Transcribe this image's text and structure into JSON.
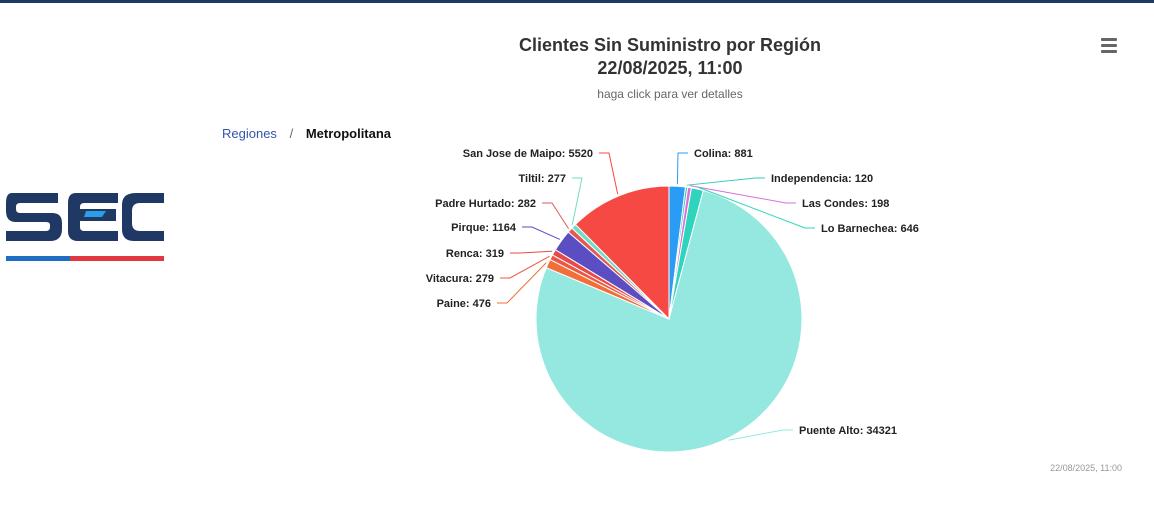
{
  "chart_data": {
    "type": "pie",
    "title_lines": [
      "Clientes Sin Suministro por Región",
      "22/08/2025, 11:00"
    ],
    "subtitle": "haga click para ver detalles",
    "slices": [
      {
        "label": "Colina: 881",
        "value": 881,
        "color": "#2b9cf5"
      },
      {
        "label": "Independencia: 120",
        "value": 120,
        "color": "#36c9b6"
      },
      {
        "label": "Las Condes: 198",
        "value": 198,
        "color": "#d86fd8"
      },
      {
        "label": "Lo Barnechea: 646",
        "value": 646,
        "color": "#2ed4bc"
      },
      {
        "label": "Puente Alto: 34321",
        "value": 34321,
        "color": "#95e8e0"
      },
      {
        "label": "Paine: 476",
        "value": 476,
        "color": "#f26f3a"
      },
      {
        "label": "Vitacura: 279",
        "value": 279,
        "color": "#ea5842"
      },
      {
        "label": "Renca: 319",
        "value": 319,
        "color": "#e84a4a"
      },
      {
        "label": "Pirque: 1164",
        "value": 1164,
        "color": "#5a4ec2"
      },
      {
        "label": "Padre Hurtado: 282",
        "value": 282,
        "color": "#e45858"
      },
      {
        "label": "Tiltil: 277",
        "value": 277,
        "color": "#72dcc4"
      },
      {
        "label": "San Jose de Maipo: 5520",
        "value": 5520,
        "color": "#f74944"
      }
    ]
  },
  "breadcrumb": {
    "root": "Regiones",
    "separator": "/",
    "current": "Metropolitana"
  },
  "credits": "22/08/2025, 11:00",
  "logo": {
    "colors": {
      "navy": "#1f3864",
      "blue": "#1e6fc4",
      "red": "#e0383e"
    }
  },
  "menu": {
    "icon": "hamburger-menu-icon"
  }
}
